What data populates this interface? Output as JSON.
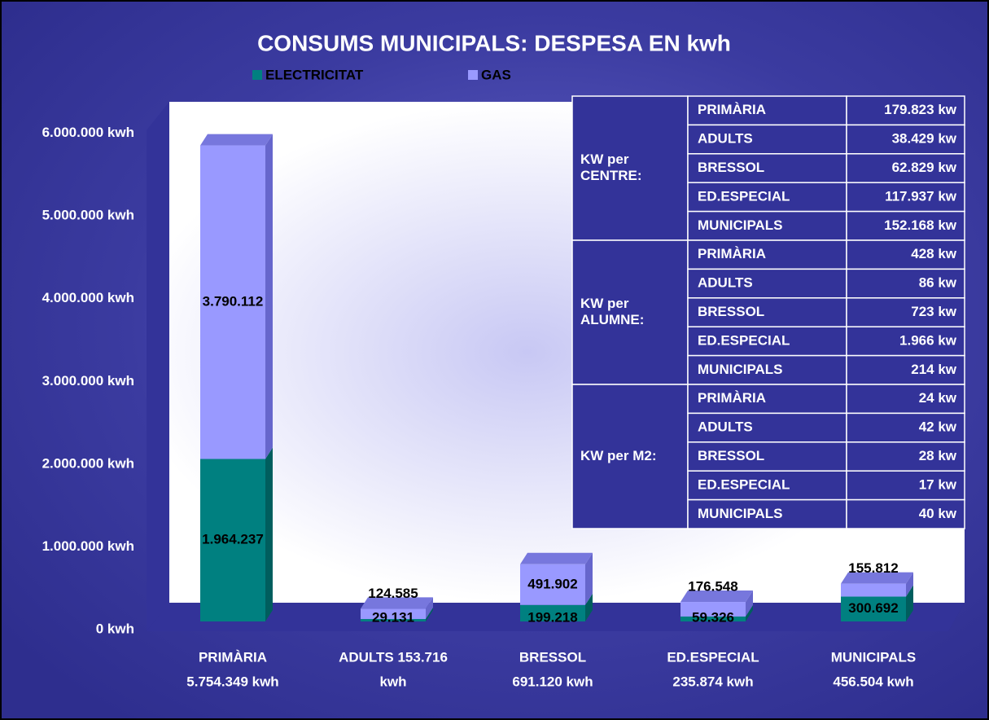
{
  "chart_data": {
    "type": "bar",
    "title": "CONSUMS MUNICIPALS: DESPESA EN kwh",
    "categories": [
      [
        "PRIMÀRIA",
        "5.754.349 kwh"
      ],
      [
        "ADULTS 153.716",
        "kwh"
      ],
      [
        "BRESSOL",
        "691.120 kwh"
      ],
      [
        "ED.ESPECIAL",
        "235.874 kwh"
      ],
      [
        "MUNICIPALS",
        "456.504 kwh"
      ]
    ],
    "series": [
      {
        "name": "ELECTRICITAT",
        "color": "#008080",
        "values": [
          1964237,
          29131,
          199218,
          59326,
          300692
        ],
        "value_labels": [
          "1.964.237",
          "29.131",
          "199.218",
          "59.326",
          "300.692"
        ]
      },
      {
        "name": "GAS",
        "color": "#9999ff",
        "values": [
          3790112,
          124585,
          491902,
          176548,
          155812
        ],
        "value_labels": [
          "3.790.112",
          "124.585",
          "491.902",
          "176.548",
          "155.812"
        ]
      }
    ],
    "stacked": true,
    "ylim": [
      0,
      6400000
    ],
    "yticks": [
      {
        "value": 0,
        "label": "0 kwh"
      },
      {
        "value": 1000000,
        "label": "1.000.000 kwh"
      },
      {
        "value": 2000000,
        "label": "2.000.000 kwh"
      },
      {
        "value": 3000000,
        "label": "3.000.000 kwh"
      },
      {
        "value": 4000000,
        "label": "4.000.000 kwh"
      },
      {
        "value": 5000000,
        "label": "5.000.000 kwh"
      },
      {
        "value": 6000000,
        "label": "6.000.000 kwh"
      }
    ],
    "legend": "top",
    "table": {
      "sections": [
        {
          "label": [
            "KW per",
            "CENTRE:"
          ],
          "rows": [
            [
              "PRIMÀRIA",
              "179.823 kw"
            ],
            [
              "ADULTS",
              "38.429 kw"
            ],
            [
              "BRESSOL",
              "62.829 kw"
            ],
            [
              "ED.ESPECIAL",
              "117.937 kw"
            ],
            [
              "MUNICIPALS",
              "152.168 kw"
            ]
          ]
        },
        {
          "label": [
            "KW per",
            "ALUMNE:"
          ],
          "rows": [
            [
              "PRIMÀRIA",
              "428 kw"
            ],
            [
              "ADULTS",
              "86 kw"
            ],
            [
              "BRESSOL",
              "723 kw"
            ],
            [
              "ED.ESPECIAL",
              "1.966 kw"
            ],
            [
              "MUNICIPALS",
              "214 kw"
            ]
          ]
        },
        {
          "label": [
            "KW per M2:"
          ],
          "rows": [
            [
              "PRIMÀRIA",
              "24 kw"
            ],
            [
              "ADULTS",
              "42 kw"
            ],
            [
              "BRESSOL",
              "28 kw"
            ],
            [
              "ED.ESPECIAL",
              "17 kw"
            ],
            [
              "MUNICIPALS",
              "40 kw"
            ]
          ]
        }
      ]
    }
  }
}
